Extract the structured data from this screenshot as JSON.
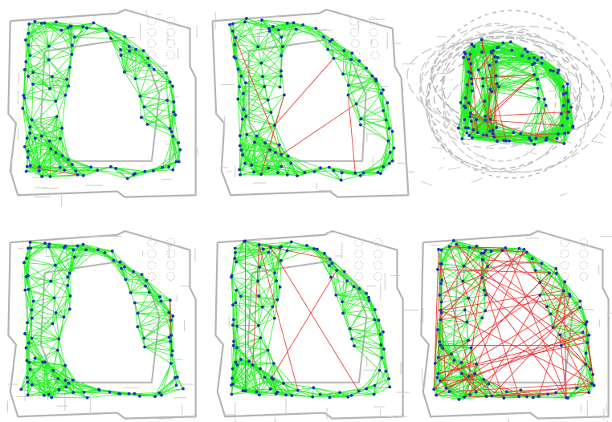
{
  "colors": {
    "background": "#ffffff",
    "floorplan": "#b4b4b4",
    "floorplan_detail": "#cbcbcb",
    "inlier_edge": "#22ee22",
    "outlier_edge": "#ee2a2a",
    "node": "#1f2fb8"
  },
  "panels": [
    {
      "name": "panel-top-left",
      "scheme": "plan",
      "outlier_loops": 1,
      "node_count": 110
    },
    {
      "name": "panel-top-middle",
      "scheme": "warped",
      "outlier_loops": 6,
      "node_count": 110
    },
    {
      "name": "panel-top-right",
      "scheme": "collapsed",
      "outlier_loops": 24,
      "node_count": 120
    },
    {
      "name": "panel-bottom-left",
      "scheme": "plan",
      "outlier_loops": 1,
      "node_count": 110
    },
    {
      "name": "panel-bottom-middle",
      "scheme": "plan",
      "outlier_loops": 6,
      "node_count": 110
    },
    {
      "name": "panel-bottom-right",
      "scheme": "plan",
      "outlier_loops": 70,
      "node_count": 110
    }
  ]
}
